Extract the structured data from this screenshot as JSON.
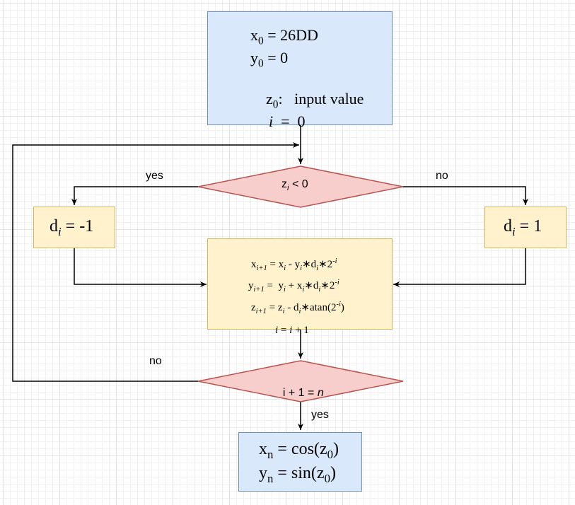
{
  "init_box": {
    "x_line": {
      "base": "x",
      "sub": "0",
      "rest": " = 26DD"
    },
    "y_line": {
      "base": "y",
      "sub": "0",
      "rest": " = 0"
    },
    "z_line": {
      "base": "z",
      "sub": "0",
      "rest": ":   input value"
    },
    "i_line": {
      "var": "i",
      "rest": "  =  0"
    }
  },
  "decision_1": {
    "base": "z",
    "sub": "i",
    "rest": " < 0"
  },
  "decision_1_yes": "yes",
  "decision_1_no": "no",
  "left_box": {
    "base": "d",
    "sub": "i",
    "rest": " = -1"
  },
  "right_box": {
    "base": "d",
    "sub": "i",
    "rest": " = 1"
  },
  "update_box": {
    "x_line": {
      "lhs": "x",
      "lhs_sub": "i+1",
      "a": " = x",
      "a_sub": "i",
      "b": " - y",
      "b_sub": "i",
      "c": "∗d",
      "c_sub": "i",
      "d": "∗2",
      "d_sup": "-i"
    },
    "y_line": {
      "lhs": "y",
      "lhs_sub": "i+1",
      "a": " =  y",
      "a_sub": "i",
      "b": " + x",
      "b_sub": "i",
      "c": "∗d",
      "c_sub": "i",
      "d": "∗2",
      "d_sup": "-i"
    },
    "z_line": {
      "lhs": "z",
      "lhs_sub": "i+1",
      "a": " = z",
      "a_sub": "i",
      "b": " - d",
      "b_sub": "i",
      "c": "∗atan(2",
      "c_sup": "-i",
      "d": ")"
    },
    "i_line": {
      "var": "i",
      "mid": " = ",
      "var2": "i",
      "rest": " + 1"
    }
  },
  "decision_2": {
    "text": "i + 1 = ",
    "var": "n"
  },
  "decision_2_no": "no",
  "decision_2_yes": "yes",
  "output_box": {
    "x_line": {
      "base": "x",
      "sub": "n",
      "rest": " = cos(z",
      "sub2": "0",
      "end": ")"
    },
    "y_line": {
      "base": "y",
      "sub": "n",
      "rest": " = sin(z",
      "sub2": "0",
      "end": ")"
    }
  },
  "colors": {
    "blue_fill": "#dae8fc",
    "blue_stroke": "#6c8ebf",
    "yellow_fill": "#fff2cc",
    "yellow_stroke": "#d6b656",
    "red_fill": "#f8cecc",
    "red_stroke": "#b85450"
  }
}
